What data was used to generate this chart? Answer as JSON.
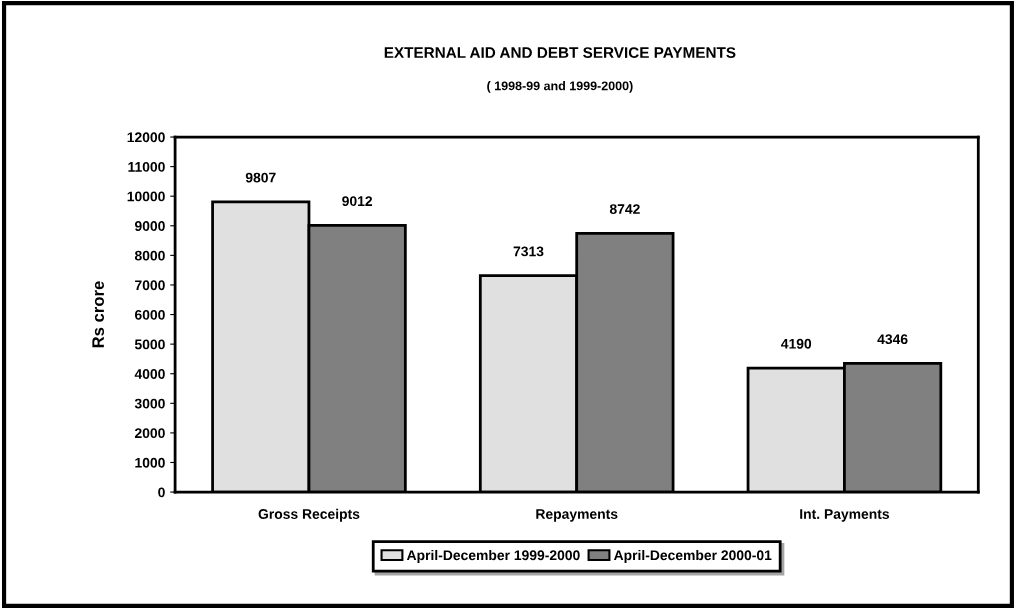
{
  "chart_data": {
    "type": "bar",
    "title": "EXTERNAL AID AND DEBT SERVICE PAYMENTS",
    "subtitle": "( 1998-99 and 1999-2000)",
    "ylabel": "Rs crore",
    "categories": [
      "Gross Receipts",
      "Repayments",
      "Int. Payments"
    ],
    "series": [
      {
        "name": "April-December 1999-2000",
        "color": "#e0e0e0",
        "values": [
          9807,
          7313,
          4190
        ]
      },
      {
        "name": "April-December 2000-01",
        "color": "#808080",
        "values": [
          9012,
          8742,
          4346
        ]
      }
    ],
    "ylim": [
      0,
      12000
    ],
    "yticks": [
      0,
      1000,
      2000,
      3000,
      4000,
      5000,
      6000,
      7000,
      8000,
      9000,
      10000,
      11000,
      12000
    ],
    "data_labels": true,
    "grid": false,
    "legend": "bottom"
  }
}
